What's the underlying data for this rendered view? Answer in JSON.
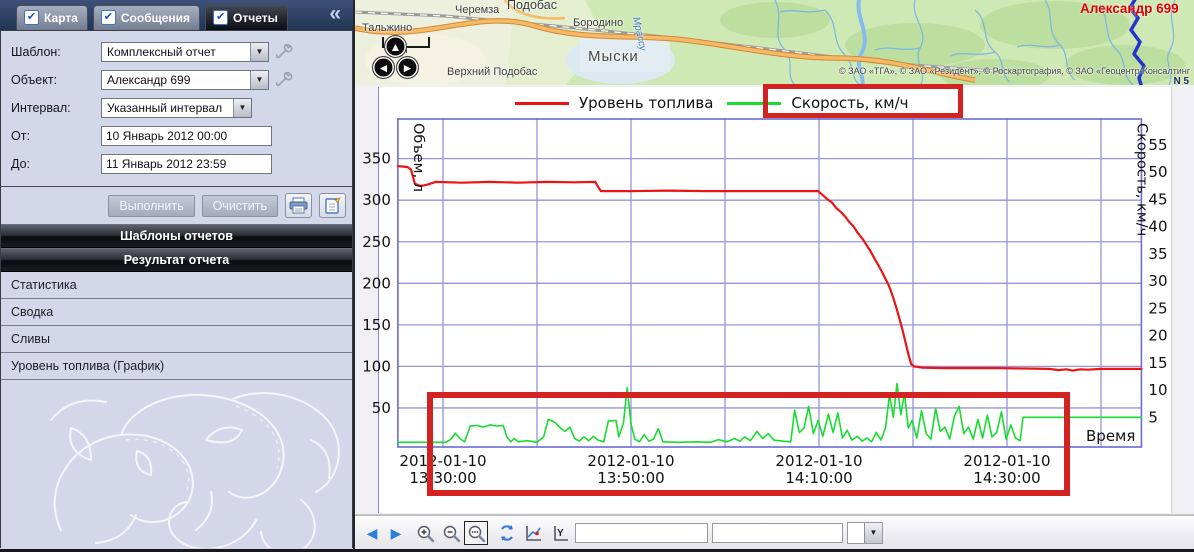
{
  "sidebar": {
    "tabs": [
      {
        "label": "Карта",
        "checked": true
      },
      {
        "label": "Сообщения",
        "checked": true
      },
      {
        "label": "Отчеты",
        "checked": true
      }
    ],
    "collapse_glyph": "«",
    "form": {
      "rows": [
        {
          "label": "Шаблон:",
          "value": "Комплексный отчет"
        },
        {
          "label": "Объект:",
          "value": "Александр 699"
        },
        {
          "label": "Интервал:",
          "value": "Указанный интервал"
        },
        {
          "label": "От:",
          "value": "10 Январь 2012 00:00"
        },
        {
          "label": "До:",
          "value": "11 Январь 2012 23:59"
        }
      ],
      "run_label": "Выполнить",
      "clear_label": "Очистить"
    },
    "section_headers": [
      "Шаблоны отчетов",
      "Результат отчета"
    ],
    "result_items": [
      "Статистика",
      "Сводка",
      "Сливы",
      "Уровень топлива (График)"
    ]
  },
  "map": {
    "place_labels": [
      {
        "text": "Тальжино"
      },
      {
        "text": "Черемза"
      },
      {
        "text": "Подобас"
      },
      {
        "text": "Бородино"
      },
      {
        "text": "Мыски"
      },
      {
        "text": "Верхний Подобас"
      }
    ],
    "river_label": "Мрассу",
    "vehicle_label": "Александр 699",
    "copyright": "© ЗАО «ТГА», © ЗАО «Резидент», © Роскартография, © ЗАО «Геоцентр-Консалтинг",
    "corner_mark": "N 5"
  },
  "chart_data": {
    "type": "line",
    "legend_position": "top",
    "grid": true,
    "grid_color": "#9595dc",
    "border_color": "#6b6bd0",
    "annotation_color": "#d32222",
    "x_axis": {
      "label": "Время",
      "window_minutes_after_13h": [
        25.2,
        104.3
      ],
      "gridline_minutes": [
        30,
        40,
        50,
        60,
        70,
        80,
        90,
        100
      ],
      "tick_labels": [
        {
          "t": 30,
          "line1": "2012-01-10",
          "line2": "13:30:00"
        },
        {
          "t": 50,
          "line1": "2012-01-10",
          "line2": "13:50:00"
        },
        {
          "t": 70,
          "line1": "2012-01-10",
          "line2": "14:10:00"
        },
        {
          "t": 90,
          "line1": "2012-01-10",
          "line2": "14:30:00"
        }
      ]
    },
    "y_left": {
      "label": "Объем, л",
      "ticks": [
        350,
        300,
        250,
        200,
        150,
        100,
        50
      ],
      "range": [
        0,
        397
      ]
    },
    "y_right": {
      "label": "Скорость, км/ч",
      "ticks": [
        55,
        50,
        45,
        40,
        35,
        30,
        25,
        20,
        15,
        10,
        5
      ],
      "range": [
        0,
        60
      ]
    },
    "series": [
      {
        "name": "Уровень топлива",
        "axis": "left",
        "color": "#ee1313",
        "width": 2.2,
        "points": [
          [
            25.2,
            341
          ],
          [
            26.2,
            340
          ],
          [
            26.6,
            337
          ],
          [
            27.0,
            320
          ],
          [
            27.6,
            317
          ],
          [
            28.4,
            319
          ],
          [
            29.2,
            322
          ],
          [
            32,
            321
          ],
          [
            35,
            322
          ],
          [
            38,
            321
          ],
          [
            41,
            322
          ],
          [
            44,
            321.5
          ],
          [
            46.2,
            322
          ],
          [
            46.5,
            316
          ],
          [
            46.8,
            311
          ],
          [
            50,
            311
          ],
          [
            54,
            311.5
          ],
          [
            58,
            311
          ],
          [
            62,
            311
          ],
          [
            66,
            311
          ],
          [
            69.9,
            311
          ],
          [
            70.4,
            306
          ],
          [
            70.9,
            301
          ],
          [
            71.4,
            297
          ],
          [
            71.8,
            291
          ],
          [
            72.3,
            286
          ],
          [
            72.8,
            280
          ],
          [
            73.2,
            274
          ],
          [
            73.7,
            268
          ],
          [
            74.1,
            261
          ],
          [
            74.6,
            254
          ],
          [
            75.0,
            247
          ],
          [
            75.4,
            240
          ],
          [
            75.8,
            232
          ],
          [
            76.2,
            224
          ],
          [
            76.6,
            216
          ],
          [
            77.0,
            207
          ],
          [
            77.4,
            198
          ],
          [
            77.7,
            189
          ],
          [
            78.0,
            179
          ],
          [
            78.3,
            168
          ],
          [
            78.6,
            156
          ],
          [
            78.9,
            143
          ],
          [
            79.2,
            129
          ],
          [
            79.5,
            115
          ],
          [
            79.8,
            103
          ],
          [
            80.1,
            100
          ],
          [
            81,
            98.5
          ],
          [
            83,
            98
          ],
          [
            86,
            98
          ],
          [
            89,
            98
          ],
          [
            92,
            97.5
          ],
          [
            94.5,
            97
          ],
          [
            95.5,
            95.5
          ],
          [
            96.3,
            96.5
          ],
          [
            97.0,
            95
          ],
          [
            97.8,
            96.5
          ],
          [
            98.6,
            96
          ],
          [
            100,
            97
          ],
          [
            102,
            97
          ],
          [
            104.3,
            97
          ]
        ]
      },
      {
        "name": "Скорость, км/ч",
        "axis": "right",
        "color": "#17dd2e",
        "width": 1.6,
        "points": [
          [
            25.2,
            0.4
          ],
          [
            30.3,
            0.4
          ],
          [
            30.8,
            0.9
          ],
          [
            31.3,
            2.1
          ],
          [
            31.8,
            1.1
          ],
          [
            32.3,
            0.5
          ],
          [
            32.9,
            3.4
          ],
          [
            33.6,
            3.5
          ],
          [
            34.3,
            3.2
          ],
          [
            35.0,
            3.6
          ],
          [
            35.7,
            3.4
          ],
          [
            36.4,
            3.5
          ],
          [
            36.8,
            1.4
          ],
          [
            37.2,
            0.5
          ],
          [
            37.6,
            1.1
          ],
          [
            38.0,
            0.5
          ],
          [
            39.0,
            0.7
          ],
          [
            40.0,
            0.4
          ],
          [
            40.7,
            1.4
          ],
          [
            41.2,
            4.6
          ],
          [
            41.9,
            4.1
          ],
          [
            42.5,
            3.0
          ],
          [
            43.0,
            2.4
          ],
          [
            43.5,
            3.2
          ],
          [
            44.0,
            1.1
          ],
          [
            44.5,
            0.6
          ],
          [
            45.0,
            1.4
          ],
          [
            45.5,
            0.7
          ],
          [
            46.0,
            1.5
          ],
          [
            46.5,
            0.8
          ],
          [
            47.1,
            0.5
          ],
          [
            47.6,
            4.3
          ],
          [
            48.4,
            4.4
          ],
          [
            48.7,
            1.4
          ],
          [
            49.2,
            4.0
          ],
          [
            49.6,
            10.4
          ],
          [
            50.0,
            3.8
          ],
          [
            50.4,
            1.0
          ],
          [
            50.9,
            0.5
          ],
          [
            51.4,
            1.8
          ],
          [
            51.9,
            0.6
          ],
          [
            52.4,
            1.0
          ],
          [
            52.9,
            2.9
          ],
          [
            53.4,
            0.5
          ],
          [
            55.0,
            0.4
          ],
          [
            57.0,
            0.5
          ],
          [
            58.5,
            0.4
          ],
          [
            59.3,
            0.9
          ],
          [
            60.2,
            0.5
          ],
          [
            61.0,
            1.1
          ],
          [
            61.6,
            0.6
          ],
          [
            62.1,
            1.4
          ],
          [
            62.7,
            0.7
          ],
          [
            63.4,
            2.4
          ],
          [
            64.0,
            1.1
          ],
          [
            64.6,
            2.0
          ],
          [
            65.2,
            0.8
          ],
          [
            66.2,
            0.6
          ],
          [
            67.0,
            0.5
          ],
          [
            67.4,
            6.3
          ],
          [
            67.9,
            2.2
          ],
          [
            68.4,
            3.0
          ],
          [
            68.9,
            7.0
          ],
          [
            69.4,
            2.0
          ],
          [
            69.9,
            4.4
          ],
          [
            70.4,
            1.5
          ],
          [
            71.0,
            5.6
          ],
          [
            71.5,
            2.2
          ],
          [
            72.0,
            5.8
          ],
          [
            72.5,
            1.2
          ],
          [
            73.0,
            2.6
          ],
          [
            73.5,
            0.8
          ],
          [
            74.1,
            1.5
          ],
          [
            74.6,
            0.6
          ],
          [
            75.1,
            1.2
          ],
          [
            75.6,
            0.5
          ],
          [
            76.1,
            2.2
          ],
          [
            76.6,
            0.8
          ],
          [
            77.1,
            3.2
          ],
          [
            77.5,
            9.2
          ],
          [
            77.9,
            5.0
          ],
          [
            78.3,
            11.2
          ],
          [
            78.7,
            5.5
          ],
          [
            79.1,
            9.4
          ],
          [
            79.5,
            3.0
          ],
          [
            79.9,
            4.4
          ],
          [
            80.4,
            1.2
          ],
          [
            80.9,
            6.2
          ],
          [
            81.4,
            2.0
          ],
          [
            81.9,
            1.0
          ],
          [
            82.4,
            6.6
          ],
          [
            82.9,
            2.4
          ],
          [
            83.4,
            3.2
          ],
          [
            83.9,
            1.0
          ],
          [
            84.4,
            5.2
          ],
          [
            84.9,
            7.0
          ],
          [
            85.4,
            2.0
          ],
          [
            85.9,
            3.2
          ],
          [
            86.4,
            1.0
          ],
          [
            86.9,
            4.6
          ],
          [
            87.4,
            1.2
          ],
          [
            87.9,
            5.4
          ],
          [
            88.4,
            1.4
          ],
          [
            88.9,
            2.2
          ],
          [
            89.4,
            6.0
          ],
          [
            89.9,
            1.0
          ],
          [
            90.4,
            3.6
          ],
          [
            90.9,
            1.2
          ],
          [
            91.4,
            0.7
          ],
          [
            91.7,
            5.0
          ],
          [
            93.0,
            5.0
          ],
          [
            96.0,
            5.0
          ],
          [
            100.0,
            5.0
          ],
          [
            104.3,
            5.0
          ]
        ]
      }
    ]
  },
  "toolbar": {
    "pan_left_glyph": "◀",
    "pan_right_glyph": "▶",
    "input1_value": "",
    "input2_value": "",
    "combo_value": ""
  }
}
